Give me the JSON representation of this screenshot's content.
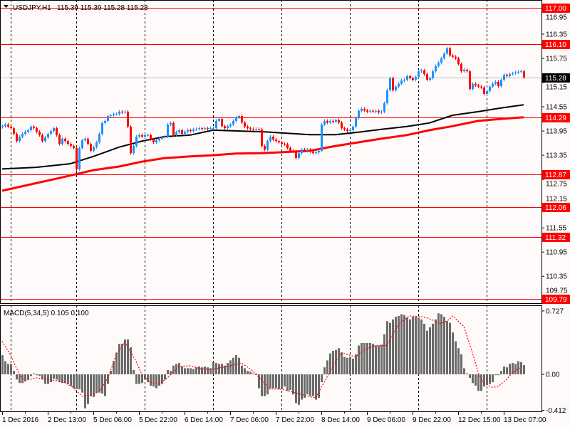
{
  "header": {
    "arrow_icon": "triangle-down-icon",
    "symbol": "USDJPY,H1",
    "ohlc": "115.39 115.39 115.28 115.28"
  },
  "colors": {
    "background": "#fffafa",
    "bull": "#1e90ff",
    "bear": "#ff0000",
    "ma_slow": "#ff0000",
    "ma_fast": "#000000",
    "level": "#ff0000",
    "current_price": "#000000",
    "histogram": "#6b6b6b",
    "signal": "#ff0000",
    "grid": "#000000"
  },
  "chart_data": {
    "type": "candlestick",
    "title": "USDJPY,H1",
    "price_ticks": [
      116.95,
      116.35,
      115.75,
      115.15,
      114.55,
      113.95,
      113.35,
      112.75,
      112.15,
      111.55,
      110.95,
      110.35,
      109.75
    ],
    "price_tick_labels": [
      "116.95",
      "116.35",
      "115.75",
      "115.15",
      "114.55",
      "113.95",
      "113.35",
      "112.75",
      "112.15",
      "111.55",
      "110.95",
      "110.35",
      "109.75"
    ],
    "levels": [
      {
        "value": 117.0,
        "label": "117.00"
      },
      {
        "value": 116.1,
        "label": "116.10"
      },
      {
        "value": 114.29,
        "label": "114.29"
      },
      {
        "value": 112.87,
        "label": "112.87"
      },
      {
        "value": 112.06,
        "label": "112.06"
      },
      {
        "value": 111.32,
        "label": "111.32"
      },
      {
        "value": 109.79,
        "label": "109.79"
      }
    ],
    "current_price": {
      "value": 115.28,
      "label": "115.28"
    },
    "time_labels": [
      {
        "bar": 0,
        "label": "1 Dec 2016"
      },
      {
        "bar": 16,
        "label": "2 Dec 13:00"
      },
      {
        "bar": 32,
        "label": "5 Dec 06:00"
      },
      {
        "bar": 48,
        "label": "5 Dec 22:00"
      },
      {
        "bar": 64,
        "label": "6 Dec 14:00"
      },
      {
        "bar": 80,
        "label": "7 Dec 06:00"
      },
      {
        "bar": 96,
        "label": "7 Dec 22:00"
      },
      {
        "bar": 112,
        "label": "8 Dec 14:00"
      },
      {
        "bar": 128,
        "label": "9 Dec 06:00"
      },
      {
        "bar": 144,
        "label": "9 Dec 22:00"
      },
      {
        "bar": 160,
        "label": "12 Dec 15:00"
      },
      {
        "bar": 176,
        "label": "13 Dec 07:00"
      }
    ],
    "day_separators": [
      3,
      26,
      50,
      74,
      98,
      122,
      146,
      170
    ],
    "closes": [
      114.07,
      114.11,
      114.06,
      114.02,
      113.88,
      113.7,
      113.81,
      113.88,
      113.93,
      113.97,
      114.06,
      114.02,
      113.93,
      113.85,
      113.7,
      113.79,
      113.88,
      113.95,
      114.02,
      113.85,
      113.63,
      113.76,
      113.7,
      113.63,
      113.58,
      113.53,
      113.0,
      113.53,
      113.72,
      113.76,
      113.63,
      113.46,
      113.55,
      113.67,
      113.88,
      114.15,
      114.2,
      114.32,
      114.34,
      114.37,
      114.37,
      114.43,
      114.41,
      114.43,
      114.06,
      113.4,
      113.58,
      113.81,
      113.85,
      113.81,
      113.85,
      113.85,
      113.74,
      113.67,
      113.72,
      113.76,
      113.79,
      113.81,
      114.11,
      114.15,
      113.85,
      113.92,
      113.97,
      113.88,
      113.93,
      113.97,
      113.95,
      113.99,
      114.0,
      114.02,
      114.0,
      114.02,
      114.0,
      114.02,
      114.02,
      114.2,
      114.25,
      114.07,
      114.02,
      114.07,
      114.11,
      114.2,
      114.29,
      114.32,
      114.16,
      114.06,
      114.02,
      114.0,
      113.99,
      114.0,
      113.99,
      113.58,
      113.49,
      113.7,
      113.81,
      113.74,
      113.7,
      113.67,
      113.63,
      113.62,
      113.53,
      113.46,
      113.44,
      113.28,
      113.4,
      113.49,
      113.46,
      113.49,
      113.44,
      113.4,
      113.42,
      113.46,
      114.11,
      114.2,
      114.16,
      114.2,
      114.18,
      114.22,
      114.16,
      114.02,
      113.99,
      113.95,
      113.97,
      114.06,
      114.27,
      114.45,
      114.5,
      114.46,
      114.43,
      114.45,
      114.43,
      114.45,
      114.41,
      114.43,
      114.64,
      114.96,
      115.26,
      114.96,
      115.05,
      115.12,
      115.2,
      115.22,
      115.31,
      115.26,
      115.22,
      115.29,
      115.43,
      115.45,
      115.36,
      115.22,
      115.26,
      115.43,
      115.56,
      115.64,
      115.75,
      115.87,
      116.0,
      115.82,
      115.79,
      115.75,
      115.61,
      115.43,
      115.47,
      115.43,
      114.99,
      115.12,
      115.08,
      115.05,
      115.03,
      114.87,
      114.94,
      115.05,
      115.12,
      115.17,
      115.06,
      115.22,
      115.34,
      115.31,
      115.36,
      115.38,
      115.4,
      115.42,
      115.43,
      115.28
    ],
    "ma_fast": [
      [
        0,
        113.01
      ],
      [
        12,
        113.05
      ],
      [
        24,
        113.14
      ],
      [
        32,
        113.32
      ],
      [
        41,
        113.55
      ],
      [
        49,
        113.7
      ],
      [
        57,
        113.81
      ],
      [
        66,
        113.85
      ],
      [
        74,
        113.97
      ],
      [
        92,
        113.93
      ],
      [
        108,
        113.86
      ],
      [
        117,
        113.86
      ],
      [
        125,
        113.92
      ],
      [
        133,
        113.99
      ],
      [
        142,
        114.06
      ],
      [
        150,
        114.15
      ],
      [
        158,
        114.34
      ],
      [
        167,
        114.43
      ],
      [
        175,
        114.52
      ],
      [
        183,
        114.6
      ]
    ],
    "ma_slow": [
      [
        0,
        112.47
      ],
      [
        21,
        112.8
      ],
      [
        32,
        112.98
      ],
      [
        41,
        113.07
      ],
      [
        49,
        113.19
      ],
      [
        57,
        113.28
      ],
      [
        66,
        113.32
      ],
      [
        74,
        113.35
      ],
      [
        82,
        113.39
      ],
      [
        91,
        113.4
      ],
      [
        108,
        113.46
      ],
      [
        117,
        113.58
      ],
      [
        125,
        113.67
      ],
      [
        133,
        113.76
      ],
      [
        142,
        113.85
      ],
      [
        150,
        113.97
      ],
      [
        158,
        114.07
      ],
      [
        167,
        114.2
      ],
      [
        175,
        114.25
      ],
      [
        183,
        114.29
      ]
    ],
    "macd": {
      "label": "MACD(5,34,5) 0.105 0.100",
      "ticks": [
        {
          "value": 0.727,
          "label": "0.727"
        },
        {
          "value": 0.0,
          "label": "0.00"
        },
        {
          "value": -0.412,
          "label": "-0.412"
        }
      ],
      "histogram": [
        0.22,
        0.15,
        0.12,
        0.12,
        0.04,
        -0.06,
        -0.1,
        -0.1,
        -0.08,
        -0.06,
        -0.02,
        0.01,
        -0.01,
        -0.02,
        -0.06,
        -0.11,
        -0.11,
        -0.09,
        -0.05,
        -0.06,
        -0.09,
        -0.1,
        -0.1,
        -0.11,
        -0.13,
        -0.16,
        -0.17,
        -0.17,
        -0.21,
        -0.39,
        -0.34,
        -0.25,
        -0.26,
        -0.21,
        -0.21,
        -0.22,
        -0.25,
        -0.11,
        0.04,
        0.15,
        0.25,
        0.35,
        0.35,
        0.4,
        0.4,
        0.31,
        0.05,
        -0.11,
        -0.11,
        -0.1,
        -0.06,
        -0.09,
        -0.13,
        -0.14,
        -0.16,
        -0.13,
        -0.11,
        -0.06,
        0.05,
        0.04,
        0.1,
        0.12,
        0.13,
        0.09,
        0.07,
        0.07,
        0.07,
        0.06,
        0.08,
        0.09,
        0.08,
        0.09,
        0.08,
        0.07,
        0.14,
        0.13,
        0.12,
        0.12,
        0.1,
        0.13,
        0.16,
        0.19,
        0.22,
        0.19,
        0.1,
        0.07,
        0.04,
        0.03,
        0.01,
        0.0,
        -0.16,
        -0.25,
        -0.25,
        -0.23,
        -0.16,
        -0.16,
        -0.16,
        -0.17,
        -0.17,
        -0.14,
        -0.19,
        -0.18,
        -0.23,
        -0.33,
        -0.35,
        -0.29,
        -0.27,
        -0.23,
        -0.25,
        -0.25,
        -0.29,
        -0.27,
        -0.09,
        0.08,
        0.16,
        0.24,
        0.27,
        0.28,
        0.3,
        0.25,
        0.2,
        0.19,
        0.2,
        0.18,
        0.23,
        0.33,
        0.36,
        0.36,
        0.36,
        0.36,
        0.35,
        0.33,
        0.33,
        0.34,
        0.46,
        0.61,
        0.59,
        0.63,
        0.66,
        0.67,
        0.69,
        0.68,
        0.65,
        0.63,
        0.66,
        0.66,
        0.65,
        0.63,
        0.58,
        0.5,
        0.54,
        0.58,
        0.63,
        0.7,
        0.69,
        0.66,
        0.61,
        0.59,
        0.48,
        0.38,
        0.3,
        0.23,
        0.07,
        0.01,
        -0.04,
        -0.1,
        -0.13,
        -0.19,
        -0.19,
        -0.14,
        -0.12,
        -0.11,
        -0.09,
        -0.01,
        -0.01,
        0.04,
        0.09,
        0.08,
        0.12,
        0.13,
        0.12,
        0.15,
        0.14,
        0.105
      ],
      "signal": [
        [
          0,
          0.38
        ],
        [
          3,
          0.22
        ],
        [
          6,
          0.0
        ],
        [
          8,
          -0.07
        ],
        [
          12,
          -0.04
        ],
        [
          16,
          -0.06
        ],
        [
          21,
          -0.08
        ],
        [
          25,
          -0.15
        ],
        [
          28,
          -0.25
        ],
        [
          31,
          -0.24
        ],
        [
          34,
          -0.2
        ],
        [
          37,
          -0.05
        ],
        [
          40,
          0.22
        ],
        [
          43,
          0.37
        ],
        [
          47,
          0.15
        ],
        [
          49,
          0.0
        ],
        [
          52,
          -0.09
        ],
        [
          55,
          -0.11
        ],
        [
          58,
          -0.04
        ],
        [
          62,
          0.09
        ],
        [
          66,
          0.1
        ],
        [
          70,
          0.06
        ],
        [
          74,
          0.06
        ],
        [
          79,
          0.09
        ],
        [
          84,
          0.13
        ],
        [
          88,
          0.04
        ],
        [
          92,
          -0.1
        ],
        [
          94,
          -0.17
        ],
        [
          98,
          -0.17
        ],
        [
          104,
          -0.22
        ],
        [
          107,
          -0.25
        ],
        [
          110,
          -0.27
        ],
        [
          113,
          -0.09
        ],
        [
          117,
          0.15
        ],
        [
          119,
          0.25
        ],
        [
          122,
          0.22
        ],
        [
          124,
          0.2
        ],
        [
          127,
          0.28
        ],
        [
          131,
          0.33
        ],
        [
          135,
          0.33
        ],
        [
          137,
          0.45
        ],
        [
          139,
          0.57
        ],
        [
          142,
          0.65
        ],
        [
          143,
          0.67
        ],
        [
          147,
          0.66
        ],
        [
          149,
          0.65
        ],
        [
          152,
          0.61
        ],
        [
          154,
          0.58
        ],
        [
          157,
          0.63
        ],
        [
          158,
          0.67
        ],
        [
          162,
          0.55
        ],
        [
          164,
          0.35
        ],
        [
          166,
          0.14
        ],
        [
          167,
          0.02
        ],
        [
          169,
          -0.1
        ],
        [
          172,
          -0.15
        ],
        [
          174,
          -0.14
        ],
        [
          177,
          -0.06
        ],
        [
          179,
          0.02
        ],
        [
          183,
          0.1
        ]
      ]
    }
  }
}
